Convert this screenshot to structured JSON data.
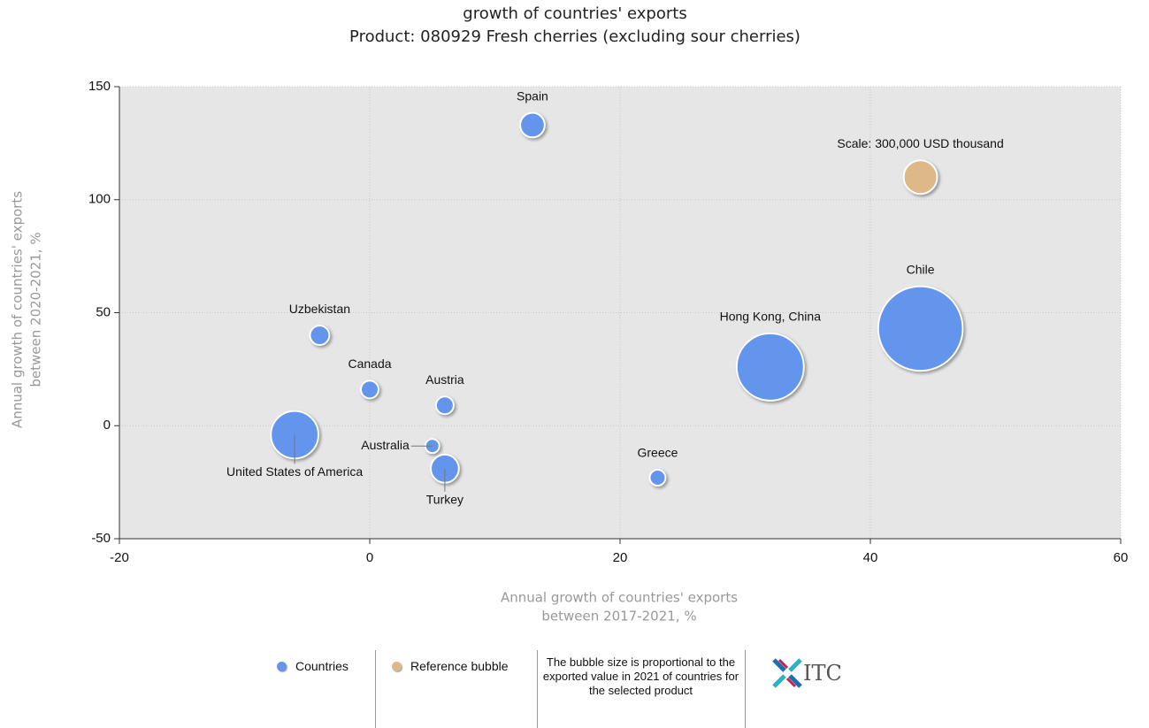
{
  "chart_data": {
    "type": "bubble",
    "title": "growth of countries' exports",
    "subtitle": "Product: 080929 Fresh cherries (excluding sour cherries)",
    "x_label": [
      "Annual growth of countries' exports",
      "between 2017-2021, %"
    ],
    "y_label": [
      "Annual growth of countries' exports",
      "between 2020-2021, %"
    ],
    "xlim": [
      -20,
      60
    ],
    "xticks": [
      -20,
      0,
      20,
      40,
      60
    ],
    "ylim": [
      -50,
      150
    ],
    "yticks": [
      -50,
      0,
      50,
      100,
      150
    ],
    "grid": true,
    "series": [
      {
        "name": "Countries",
        "color": "#6495ed",
        "labels": [
          "Spain",
          "Chile",
          "Hong Kong, China",
          "Uzbekistan",
          "Canada",
          "Austria",
          "United States of America",
          "Australia",
          "Turkey",
          "Greece"
        ],
        "x": [
          13,
          44,
          32,
          -4,
          0,
          6,
          -6,
          5,
          6,
          23
        ],
        "y": [
          133,
          43,
          26,
          40,
          16,
          9,
          -4,
          -9,
          -19,
          -23
        ],
        "size": [
          160000,
          1900000,
          1200000,
          100000,
          83000,
          83000,
          600000,
          53000,
          210000,
          67000
        ]
      },
      {
        "name": "Reference bubble",
        "color": "#deb887",
        "labels": [
          "Scale: 300,000 USD thousand"
        ],
        "x": [
          44
        ],
        "y": [
          110
        ],
        "size": [
          300000
        ]
      }
    ],
    "note": "The bubble size is proportional to the exported value in 2021 of countries for the selected product",
    "logo": "ITC"
  }
}
